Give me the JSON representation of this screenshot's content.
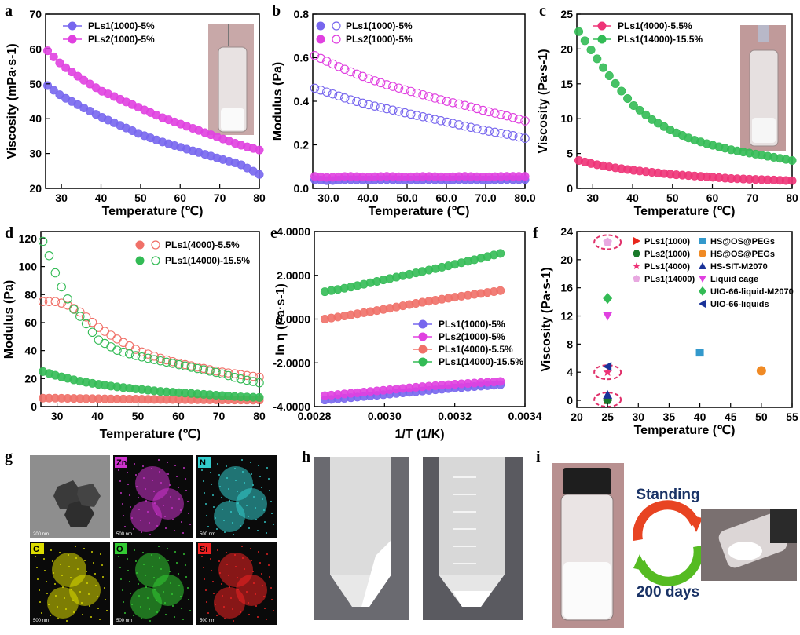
{
  "colors": {
    "pls1_1000": "#7766ee",
    "pls2_1000": "#e040e0",
    "pls1_4000": "#ee3377",
    "pls1_14000": "#33bb55",
    "salmon": "#f07068",
    "green": "#33bb55",
    "blue": "#1a3399",
    "orange": "#f08a24",
    "teal": "#3399cc",
    "dark_green": "#1a7a2a",
    "red": "#e8261c",
    "lavender": "#e8a8e0"
  },
  "panels": {
    "a": {
      "label": "a"
    },
    "b": {
      "label": "b"
    },
    "c": {
      "label": "c"
    },
    "d": {
      "label": "d"
    },
    "e": {
      "label": "e"
    },
    "f": {
      "label": "f"
    },
    "g": {
      "label": "g"
    },
    "h": {
      "label": "h"
    },
    "i": {
      "label": "i"
    }
  },
  "micrographs": {
    "tiles": [
      {
        "element": "",
        "color": "#d0d0d0",
        "scale": "200 nm"
      },
      {
        "element": "Zn",
        "color": "#cc33cc",
        "scale": "500 nm"
      },
      {
        "element": "N",
        "color": "#33cccc",
        "scale": "500 nm"
      },
      {
        "element": "C",
        "color": "#dddd00",
        "scale": "500 nm"
      },
      {
        "element": "O",
        "color": "#33cc33",
        "scale": "500 nm"
      },
      {
        "element": "Si",
        "color": "#ee2222",
        "scale": "500 nm"
      }
    ]
  },
  "photo_i": {
    "standing": "Standing",
    "days": "200 days"
  },
  "chart_data": [
    {
      "panel": "a",
      "type": "scatter",
      "xlabel": "Temperature (℃)",
      "ylabel": "Viscosity (mPa·s-1)",
      "xlim": [
        26,
        80
      ],
      "ylim": [
        20,
        70
      ],
      "xticks": [
        30,
        40,
        50,
        60,
        70,
        80
      ],
      "yticks": [
        20,
        30,
        40,
        50,
        60,
        70
      ],
      "legend_position": "top-left",
      "series": [
        {
          "name": "PLs1(1000)-5%",
          "style": "filled",
          "x": [
            26.5,
            30,
            35,
            40,
            45,
            50,
            55,
            60,
            65,
            70,
            75,
            80
          ],
          "y": [
            49.5,
            46.5,
            43.5,
            40.5,
            38,
            35.5,
            33.5,
            31.8,
            30.2,
            28.5,
            27,
            24
          ]
        },
        {
          "name": "PLs2(1000)-5%",
          "style": "filled",
          "x": [
            26.5,
            30,
            35,
            40,
            45,
            50,
            55,
            60,
            65,
            70,
            75,
            80
          ],
          "y": [
            59.5,
            55.5,
            51.5,
            48,
            45.5,
            43,
            40.5,
            38.5,
            36.5,
            34.5,
            32.5,
            31
          ]
        }
      ]
    },
    {
      "panel": "b",
      "type": "scatter",
      "xlabel": "Temperature (℃)",
      "ylabel": "Modulus (Pa)",
      "xlim": [
        26,
        80
      ],
      "ylim": [
        0,
        0.8
      ],
      "xticks": [
        30,
        40,
        50,
        60,
        70,
        80
      ],
      "yticks": [
        0.0,
        0.2,
        0.4,
        0.6,
        0.8
      ],
      "legend_position": "top-left",
      "series": [
        {
          "name": "PLs1(1000)-5%",
          "style": "filled",
          "x": [
            26.5,
            30,
            35,
            40,
            45,
            50,
            55,
            60,
            65,
            70,
            75,
            80
          ],
          "y": [
            0.04,
            0.035,
            0.04,
            0.038,
            0.04,
            0.038,
            0.04,
            0.038,
            0.04,
            0.038,
            0.04,
            0.04
          ]
        },
        {
          "name": "PLs2(1000)-5%",
          "style": "filled",
          "x": [
            26.5,
            30,
            35,
            40,
            45,
            50,
            55,
            60,
            65,
            70,
            75,
            80
          ],
          "y": [
            0.055,
            0.05,
            0.055,
            0.052,
            0.055,
            0.052,
            0.055,
            0.052,
            0.055,
            0.052,
            0.055,
            0.055
          ]
        },
        {
          "name": "PLs1(1000)-5%",
          "style": "open",
          "x": [
            26.5,
            30,
            35,
            40,
            45,
            50,
            55,
            60,
            65,
            70,
            75,
            80
          ],
          "y": [
            0.46,
            0.44,
            0.41,
            0.385,
            0.365,
            0.345,
            0.325,
            0.305,
            0.285,
            0.265,
            0.25,
            0.23
          ]
        },
        {
          "name": "PLs2(1000)-5%",
          "style": "open",
          "x": [
            26.5,
            30,
            35,
            40,
            45,
            50,
            55,
            60,
            65,
            70,
            75,
            80
          ],
          "y": [
            0.61,
            0.58,
            0.54,
            0.505,
            0.475,
            0.45,
            0.425,
            0.4,
            0.38,
            0.355,
            0.335,
            0.31
          ]
        }
      ]
    },
    {
      "panel": "c",
      "type": "scatter",
      "xlabel": "Temperature (℃)",
      "ylabel": "Viscosity (Pa·s-1)",
      "xlim": [
        26,
        80
      ],
      "ylim": [
        0,
        25
      ],
      "xticks": [
        30,
        40,
        50,
        60,
        70,
        80
      ],
      "yticks": [
        0,
        5,
        10,
        15,
        20,
        25
      ],
      "legend_position": "top-left",
      "series": [
        {
          "name": "PLs1(4000)-5.5%",
          "style": "filled",
          "x": [
            26.5,
            30,
            35,
            40,
            45,
            50,
            55,
            60,
            65,
            70,
            75,
            80
          ],
          "y": [
            4,
            3.5,
            3,
            2.6,
            2.3,
            2,
            1.8,
            1.6,
            1.4,
            1.3,
            1.2,
            1.1
          ]
        },
        {
          "name": "PLs1(14000)-15.5%",
          "style": "filled",
          "x": [
            26.5,
            30,
            33,
            36,
            40,
            45,
            50,
            55,
            60,
            65,
            70,
            75,
            80
          ],
          "y": [
            22.5,
            19.5,
            17,
            14.8,
            12,
            9.8,
            8.2,
            7,
            6.2,
            5.5,
            5,
            4.5,
            4
          ]
        }
      ]
    },
    {
      "panel": "d",
      "type": "scatter",
      "xlabel": "Temperature (℃)",
      "ylabel": "Modulus (Pa)",
      "xlim": [
        26,
        80
      ],
      "ylim": [
        0,
        125
      ],
      "xticks": [
        30,
        40,
        50,
        60,
        70,
        80
      ],
      "yticks": [
        0,
        20,
        40,
        60,
        80,
        100,
        120
      ],
      "legend_position": "top-right",
      "series": [
        {
          "name": "PLs1(4000)-5.5%",
          "style": "filled",
          "x": [
            26.5,
            30,
            35,
            40,
            45,
            50,
            55,
            60,
            65,
            70,
            75,
            80
          ],
          "y": [
            6,
            6,
            5.8,
            5.6,
            5.4,
            5.3,
            5.1,
            5,
            4.9,
            4.8,
            4.7,
            4.6
          ]
        },
        {
          "name": "PLs1(14000)-15.5%",
          "style": "filled",
          "x": [
            26.5,
            30,
            35,
            40,
            45,
            50,
            55,
            60,
            65,
            70,
            75,
            80
          ],
          "y": [
            25,
            22,
            18.5,
            16,
            14,
            12.5,
            11,
            10,
            9,
            8,
            7,
            6.5
          ]
        },
        {
          "name": "PLs1(4000)-5.5%",
          "style": "open",
          "x": [
            26.5,
            30,
            33,
            36,
            40,
            45,
            50,
            55,
            60,
            65,
            70,
            75,
            80
          ],
          "y": [
            75,
            75,
            72,
            67,
            57,
            48,
            40,
            35,
            31,
            28,
            25,
            23,
            21
          ]
        },
        {
          "name": "PLs1(14000)-15.5%",
          "style": "open",
          "x": [
            26.5,
            28,
            30,
            32,
            34,
            37,
            40,
            45,
            50,
            55,
            60,
            65,
            70,
            75,
            80
          ],
          "y": [
            118,
            108,
            92,
            80,
            70,
            60,
            48,
            40,
            36,
            33,
            30,
            27,
            24,
            20,
            17
          ]
        }
      ]
    },
    {
      "panel": "e",
      "type": "scatter",
      "xlabel": "1/T (1/K)",
      "ylabel": "ln η (Pa·s-1)",
      "xlim": [
        0.0028,
        0.0034
      ],
      "ylim": [
        -4,
        4
      ],
      "xticks": [
        0.0028,
        0.003,
        0.0032,
        0.0034
      ],
      "yticks": [
        -4,
        -2,
        0,
        2,
        4
      ],
      "legend_position": "bottom-right",
      "series": [
        {
          "name": "PLs1(1000)-5%",
          "style": "filled",
          "x": [
            0.00283,
            0.0029,
            0.003,
            0.0031,
            0.0032,
            0.00333
          ],
          "y": [
            -3.7,
            -3.6,
            -3.45,
            -3.3,
            -3.15,
            -3.0
          ]
        },
        {
          "name": "PLs2(1000)-5%",
          "style": "filled",
          "x": [
            0.00283,
            0.0029,
            0.003,
            0.0031,
            0.0032,
            0.00333
          ],
          "y": [
            -3.5,
            -3.4,
            -3.25,
            -3.1,
            -2.98,
            -2.85
          ]
        },
        {
          "name": "PLs1(4000)-5.5%",
          "style": "filled",
          "x": [
            0.00283,
            0.0029,
            0.003,
            0.0031,
            0.0032,
            0.00333
          ],
          "y": [
            0.0,
            0.18,
            0.45,
            0.75,
            1.0,
            1.3
          ]
        },
        {
          "name": "PLs1(14000)-15.5%",
          "style": "filled",
          "x": [
            0.00283,
            0.0029,
            0.003,
            0.0031,
            0.0032,
            0.00333
          ],
          "y": [
            1.25,
            1.45,
            1.8,
            2.15,
            2.5,
            3.0
          ]
        }
      ]
    },
    {
      "panel": "f",
      "type": "scatter",
      "xlabel": "Temperature (℃)",
      "ylabel": "Viscosity (Pa·s-1)",
      "xlim": [
        20,
        55
      ],
      "ylim": [
        -1,
        24
      ],
      "xticks": [
        20,
        25,
        30,
        35,
        40,
        45,
        50,
        55
      ],
      "yticks": [
        0,
        4,
        8,
        12,
        16,
        20,
        24
      ],
      "legend_position": "top",
      "series": [
        {
          "name": "PLs1(1000)",
          "marker": "triangle-right",
          "color": "red",
          "x": [
            25
          ],
          "y": [
            0.05
          ]
        },
        {
          "name": "PLs2(1000)",
          "marker": "hexagon",
          "color": "dark_green",
          "x": [
            25
          ],
          "y": [
            0.06
          ]
        },
        {
          "name": "PLs1(4000)",
          "marker": "star",
          "color": "pls1_4000",
          "x": [
            25
          ],
          "y": [
            4.0
          ]
        },
        {
          "name": "PLs1(14000)",
          "marker": "pentagon",
          "color": "lavender",
          "x": [
            25
          ],
          "y": [
            22.5
          ]
        },
        {
          "name": "HS@OS@PEGs",
          "marker": "square",
          "color": "teal",
          "x": [
            40
          ],
          "y": [
            6.8
          ]
        },
        {
          "name": "HS@OS@PEGs",
          "marker": "circle",
          "color": "orange",
          "x": [
            50
          ],
          "y": [
            4.2
          ]
        },
        {
          "name": "HS-SIT-M2070",
          "marker": "triangle-up",
          "color": "blue",
          "x": [
            25
          ],
          "y": [
            0.8
          ]
        },
        {
          "name": "Liquid cage",
          "marker": "triangle-down",
          "color": "pls2_1000",
          "x": [
            25
          ],
          "y": [
            12.0
          ]
        },
        {
          "name": "UIO-66-liquid-M2070",
          "marker": "diamond",
          "color": "green",
          "x": [
            25
          ],
          "y": [
            14.5
          ]
        },
        {
          "name": "UIO-66-liquids",
          "marker": "triangle-left",
          "color": "blue",
          "x": [
            25
          ],
          "y": [
            4.8
          ]
        }
      ]
    }
  ]
}
